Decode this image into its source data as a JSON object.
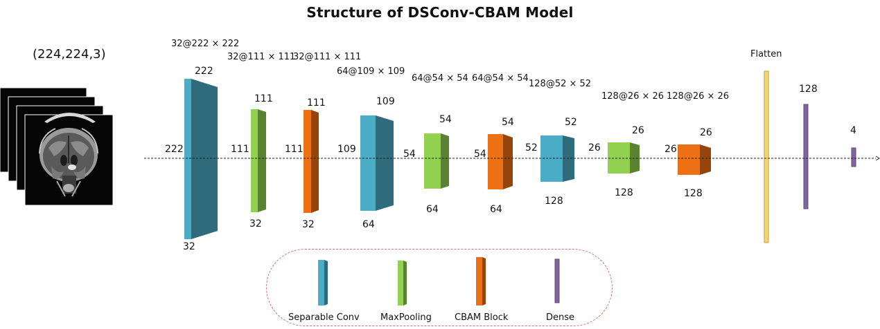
{
  "title": "Structure of DSConv-CBAM Model",
  "input": {
    "label": "(224,224,3)"
  },
  "colors": {
    "separable_conv": "#4BACC6",
    "maxpooling": "#92D050",
    "cbam": "#ED7014",
    "dense": "#8064A2",
    "flatten": "#F6D56A"
  },
  "layers": [
    {
      "type": "separable_conv",
      "dims": "32@222 × 222",
      "top": "222",
      "left": "222",
      "bottom": "32"
    },
    {
      "type": "maxpooling",
      "dims": "32@111 × 111",
      "top": "111",
      "left": "111",
      "bottom": "32"
    },
    {
      "type": "cbam",
      "dims": "32@111 × 111",
      "top": "111",
      "left": "111",
      "bottom": "32"
    },
    {
      "type": "separable_conv",
      "dims": "64@109 × 109",
      "top": "109",
      "left": "109",
      "bottom": "64"
    },
    {
      "type": "maxpooling",
      "dims": "64@54 × 54",
      "top": "54",
      "left": "54",
      "bottom": "64"
    },
    {
      "type": "cbam",
      "dims": "64@54 × 54",
      "top": "54",
      "left": "54",
      "bottom": "64"
    },
    {
      "type": "separable_conv",
      "dims": "128@52 × 52",
      "top": "52",
      "left": "52",
      "bottom": "128"
    },
    {
      "type": "maxpooling",
      "dims": "128@26 × 26",
      "top": "26",
      "left": "26",
      "bottom": "128"
    },
    {
      "type": "cbam",
      "dims": "128@26 × 26",
      "top": "26",
      "left": "26",
      "bottom": "128"
    }
  ],
  "flatten": {
    "label": "Flatten"
  },
  "dense": [
    {
      "label": "128"
    },
    {
      "label": "4"
    }
  ],
  "legend": [
    {
      "type": "separable_conv",
      "label": "Separable Conv"
    },
    {
      "type": "maxpooling",
      "label": "MaxPooling"
    },
    {
      "type": "cbam",
      "label": "CBAM Block"
    },
    {
      "type": "dense",
      "label": "Dense"
    }
  ]
}
